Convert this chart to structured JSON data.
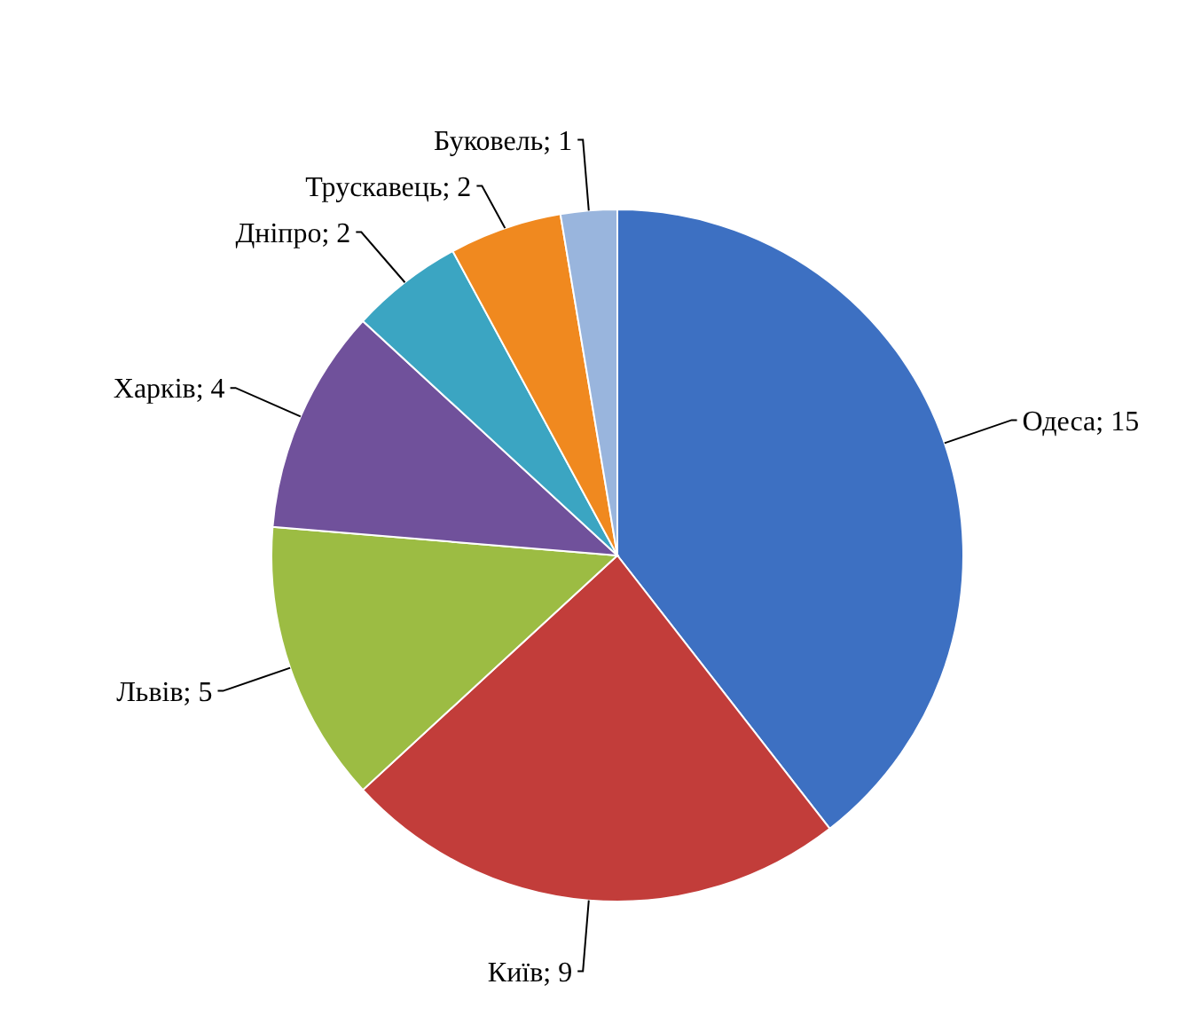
{
  "chart_data": {
    "type": "pie",
    "categories": [
      "Одеса",
      "Київ",
      "Львів",
      "Харків",
      "Дніпро",
      "Трускавець",
      "Буковель"
    ],
    "values": [
      15,
      9,
      5,
      4,
      2,
      2,
      1
    ],
    "colors": [
      "#3d70c2",
      "#c23d3a",
      "#9cbc43",
      "#70519b",
      "#3ba5c2",
      "#f0891f",
      "#99b5dd"
    ],
    "value_labels": [
      "; 15",
      "; 9",
      "; 5",
      "; 4",
      "; 2",
      "; 2",
      "; 1"
    ]
  }
}
